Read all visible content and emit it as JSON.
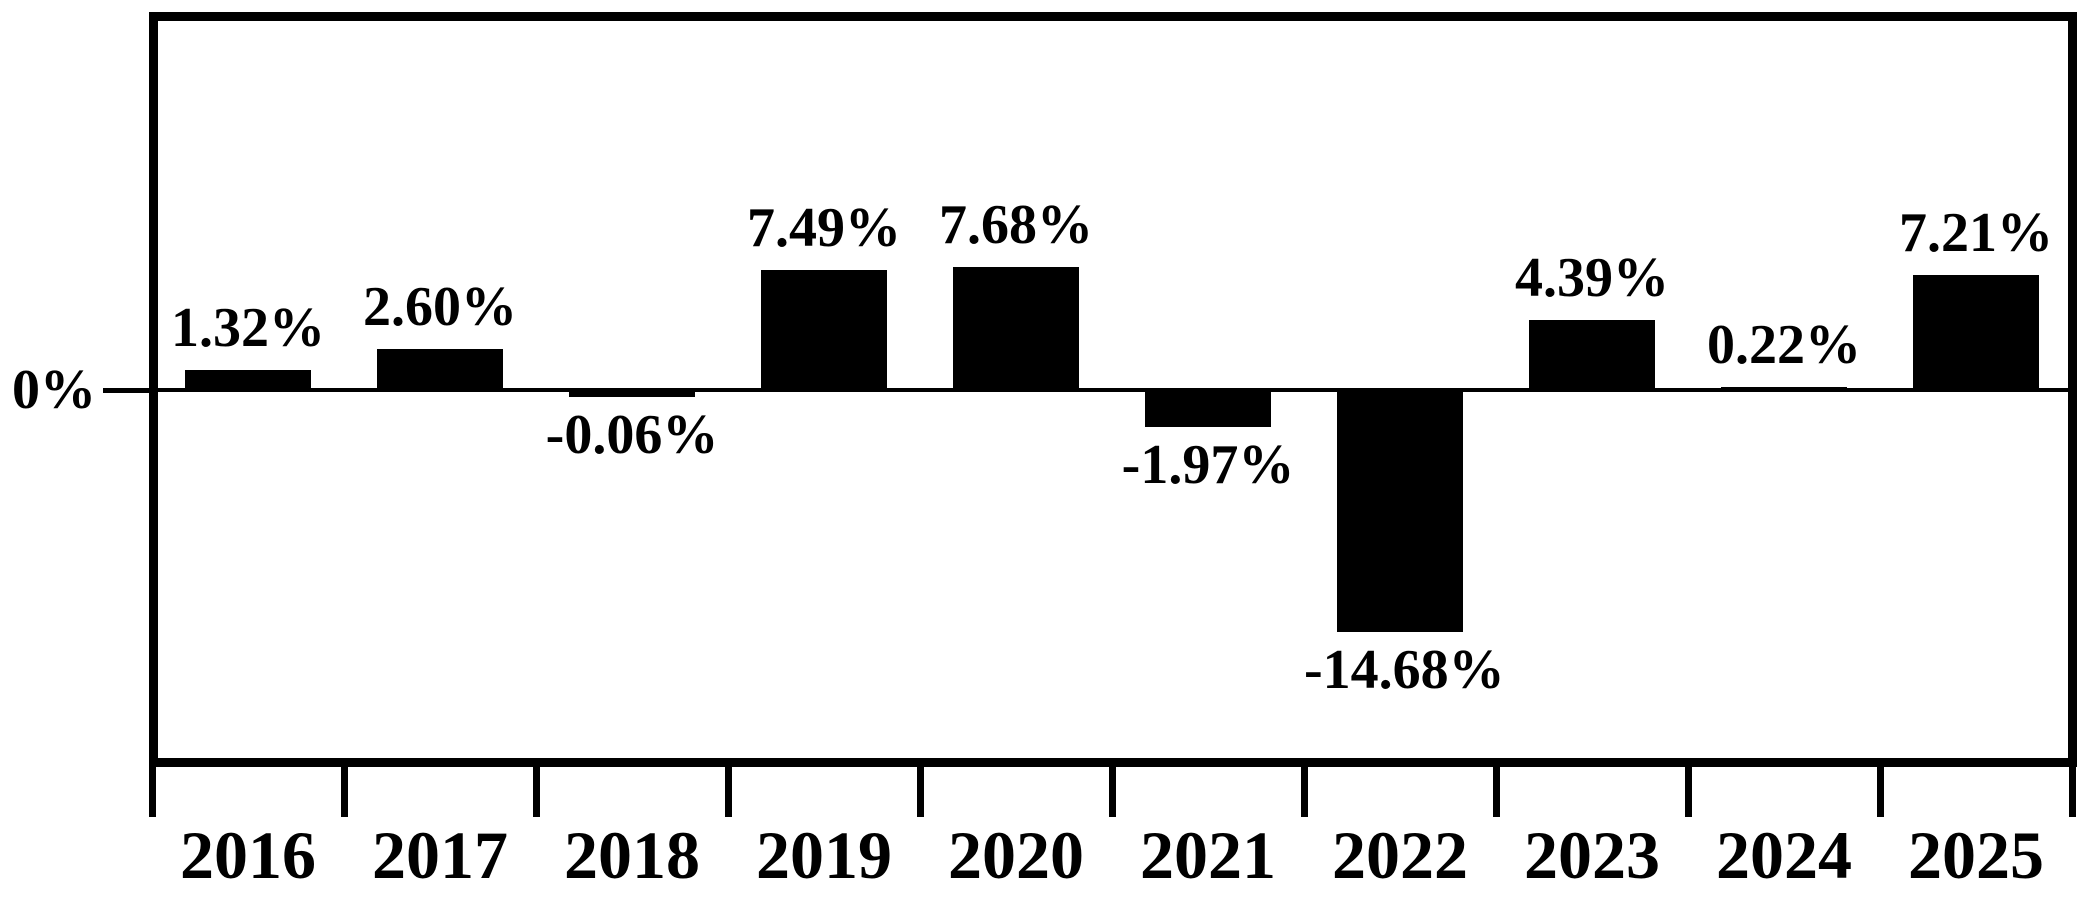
{
  "chart_data": {
    "type": "bar",
    "title": "",
    "xlabel": "",
    "ylabel": "",
    "categories": [
      "2016",
      "2017",
      "2018",
      "2019",
      "2020",
      "2021",
      "2022",
      "2023",
      "2024",
      "2025"
    ],
    "values": [
      1.32,
      2.6,
      -0.06,
      7.49,
      7.68,
      -1.97,
      -14.68,
      4.39,
      0.22,
      7.21
    ],
    "labels": [
      "1.32%",
      "2.60%",
      "-0.06%",
      "7.49%",
      "7.68%",
      "-1.97%",
      "-14.68%",
      "4.39%",
      "0.22%",
      "7.21%"
    ],
    "y_axis_tick_labels": [
      "0%"
    ],
    "axis_range_pct": [
      -23,
      23
    ],
    "grid": false,
    "legend": false,
    "bar_color": "#000000",
    "text_color": "#000000",
    "background_color": "#ffffff",
    "frame_color": "#000000"
  }
}
